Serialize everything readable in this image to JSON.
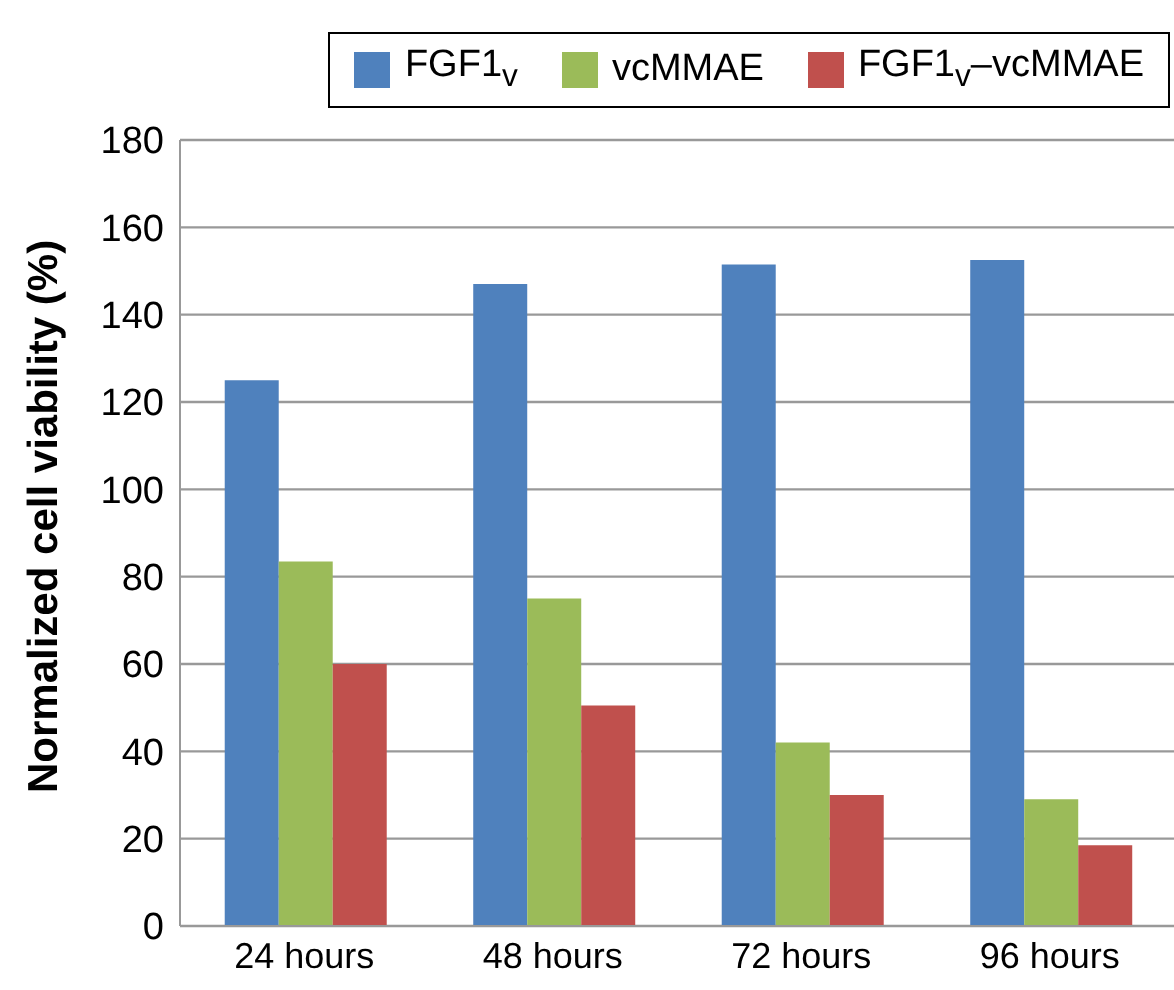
{
  "chart_data": {
    "type": "bar",
    "ylabel": "Normalized cell viability (%)",
    "categories": [
      "24 hours",
      "48 hours",
      "72 hours",
      "96 hours"
    ],
    "series": [
      {
        "name": "FGF1$_{v}$",
        "color": "#4f81bd",
        "values": [
          125,
          147,
          151.5,
          152.5
        ]
      },
      {
        "name": "vcMMAE",
        "color": "#9bbb59",
        "values": [
          83.5,
          75,
          42,
          29
        ]
      },
      {
        "name": "FGF1$_{v}$–vcMMAE",
        "color": "#c0504d",
        "values": [
          60,
          50.5,
          30,
          18.5
        ]
      }
    ],
    "ylim": [
      0,
      180
    ],
    "yticks": [
      0,
      20,
      40,
      60,
      80,
      100,
      120,
      140,
      160,
      180
    ],
    "grid": "y",
    "legend": "top right"
  }
}
